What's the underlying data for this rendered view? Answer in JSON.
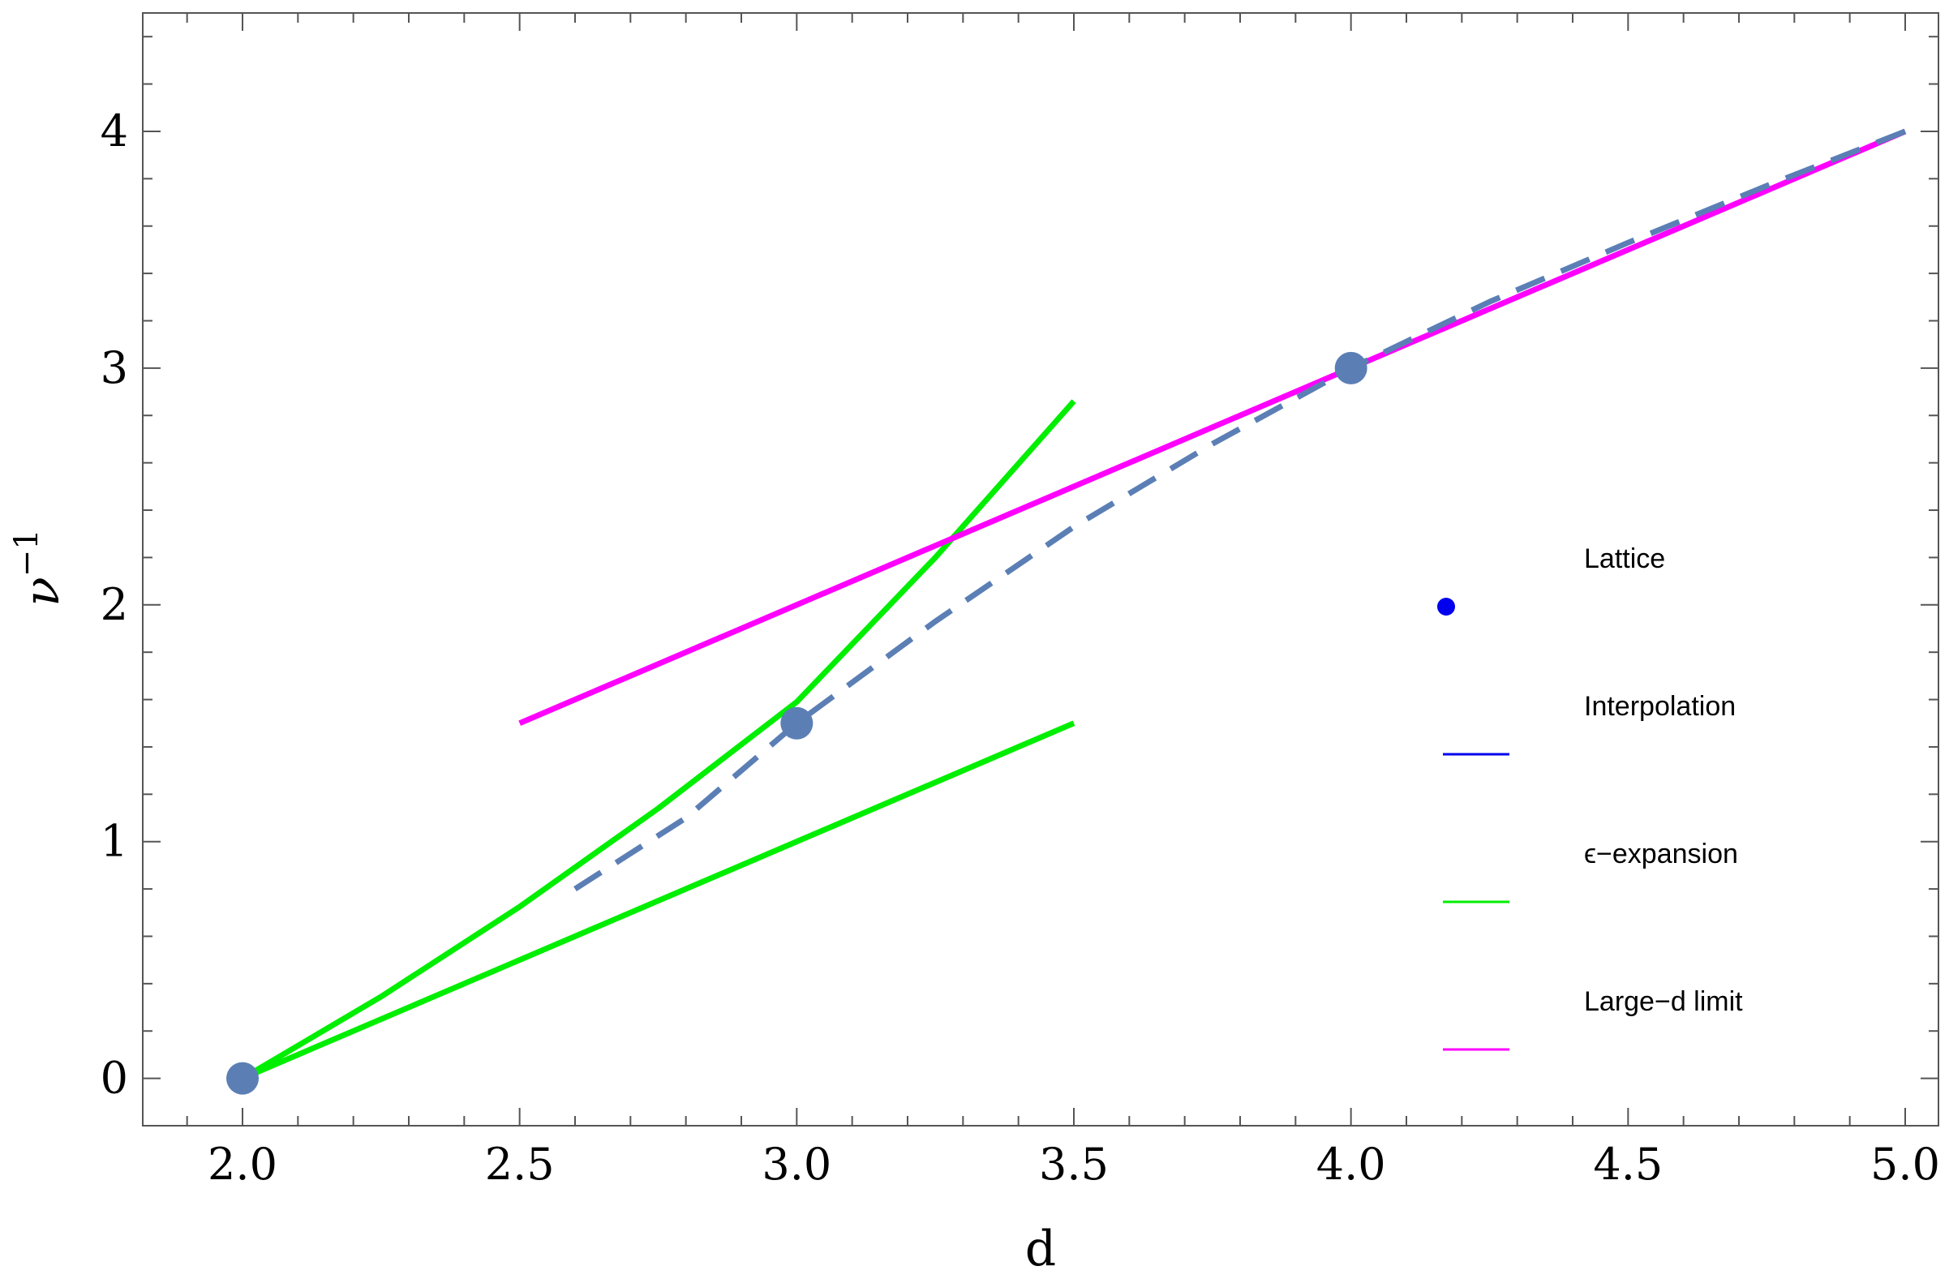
{
  "chart_data": {
    "type": "line",
    "xlabel": "d",
    "ylabel": {
      "base": "ν",
      "superscript": "−1"
    },
    "xlim": [
      1.82,
      5.06
    ],
    "ylim": [
      -0.2,
      4.5
    ],
    "xticks": [
      {
        "value": 2.0,
        "label": "2.0"
      },
      {
        "value": 2.5,
        "label": "2.5"
      },
      {
        "value": 3.0,
        "label": "3.0"
      },
      {
        "value": 3.5,
        "label": "3.5"
      },
      {
        "value": 4.0,
        "label": "4.0"
      },
      {
        "value": 4.5,
        "label": "4.5"
      },
      {
        "value": 5.0,
        "label": "5.0"
      }
    ],
    "yticks": [
      {
        "value": 0,
        "label": "0"
      },
      {
        "value": 1,
        "label": "1"
      },
      {
        "value": 2,
        "label": "2"
      },
      {
        "value": 3,
        "label": "3"
      },
      {
        "value": 4,
        "label": "4"
      }
    ],
    "grid": false,
    "legend_position": "right",
    "series": [
      {
        "name": "Lattice",
        "kind": "points",
        "color": "#5b7fb5",
        "legend_color": "#0000ee",
        "x": [
          2.0,
          3.0,
          4.0
        ],
        "y": [
          0.0,
          1.5,
          3.0
        ]
      },
      {
        "name": "Interpolation",
        "kind": "dashed-line",
        "color": "#5b7fb5",
        "legend_color": "#0000ee",
        "x": [
          2.6,
          2.8,
          3.0,
          3.25,
          3.5,
          3.75,
          4.0,
          4.25,
          4.5,
          4.75,
          5.0
        ],
        "y": [
          0.8,
          1.1,
          1.5,
          1.93,
          2.33,
          2.68,
          3.0,
          3.28,
          3.53,
          3.77,
          4.0
        ]
      },
      {
        "name": "ϵ−expansion",
        "kind": "line",
        "color": "#00ee00",
        "legend_color": "#00ee00",
        "x": [
          2.0,
          2.25,
          2.5,
          2.75,
          3.0,
          3.25,
          3.5
        ],
        "y": [
          0.0,
          0.345,
          0.725,
          1.14,
          1.59,
          2.2,
          2.86
        ]
      },
      {
        "name": "",
        "kind": "line",
        "color": "#00ee00",
        "x": [
          2.0,
          3.5
        ],
        "y": [
          0.0,
          1.5
        ]
      },
      {
        "name": "Large−d limit",
        "kind": "line",
        "color": "#ff00ff",
        "legend_color": "#ff00ff",
        "x": [
          2.5,
          5.0
        ],
        "y": [
          1.5,
          4.0
        ]
      }
    ]
  }
}
